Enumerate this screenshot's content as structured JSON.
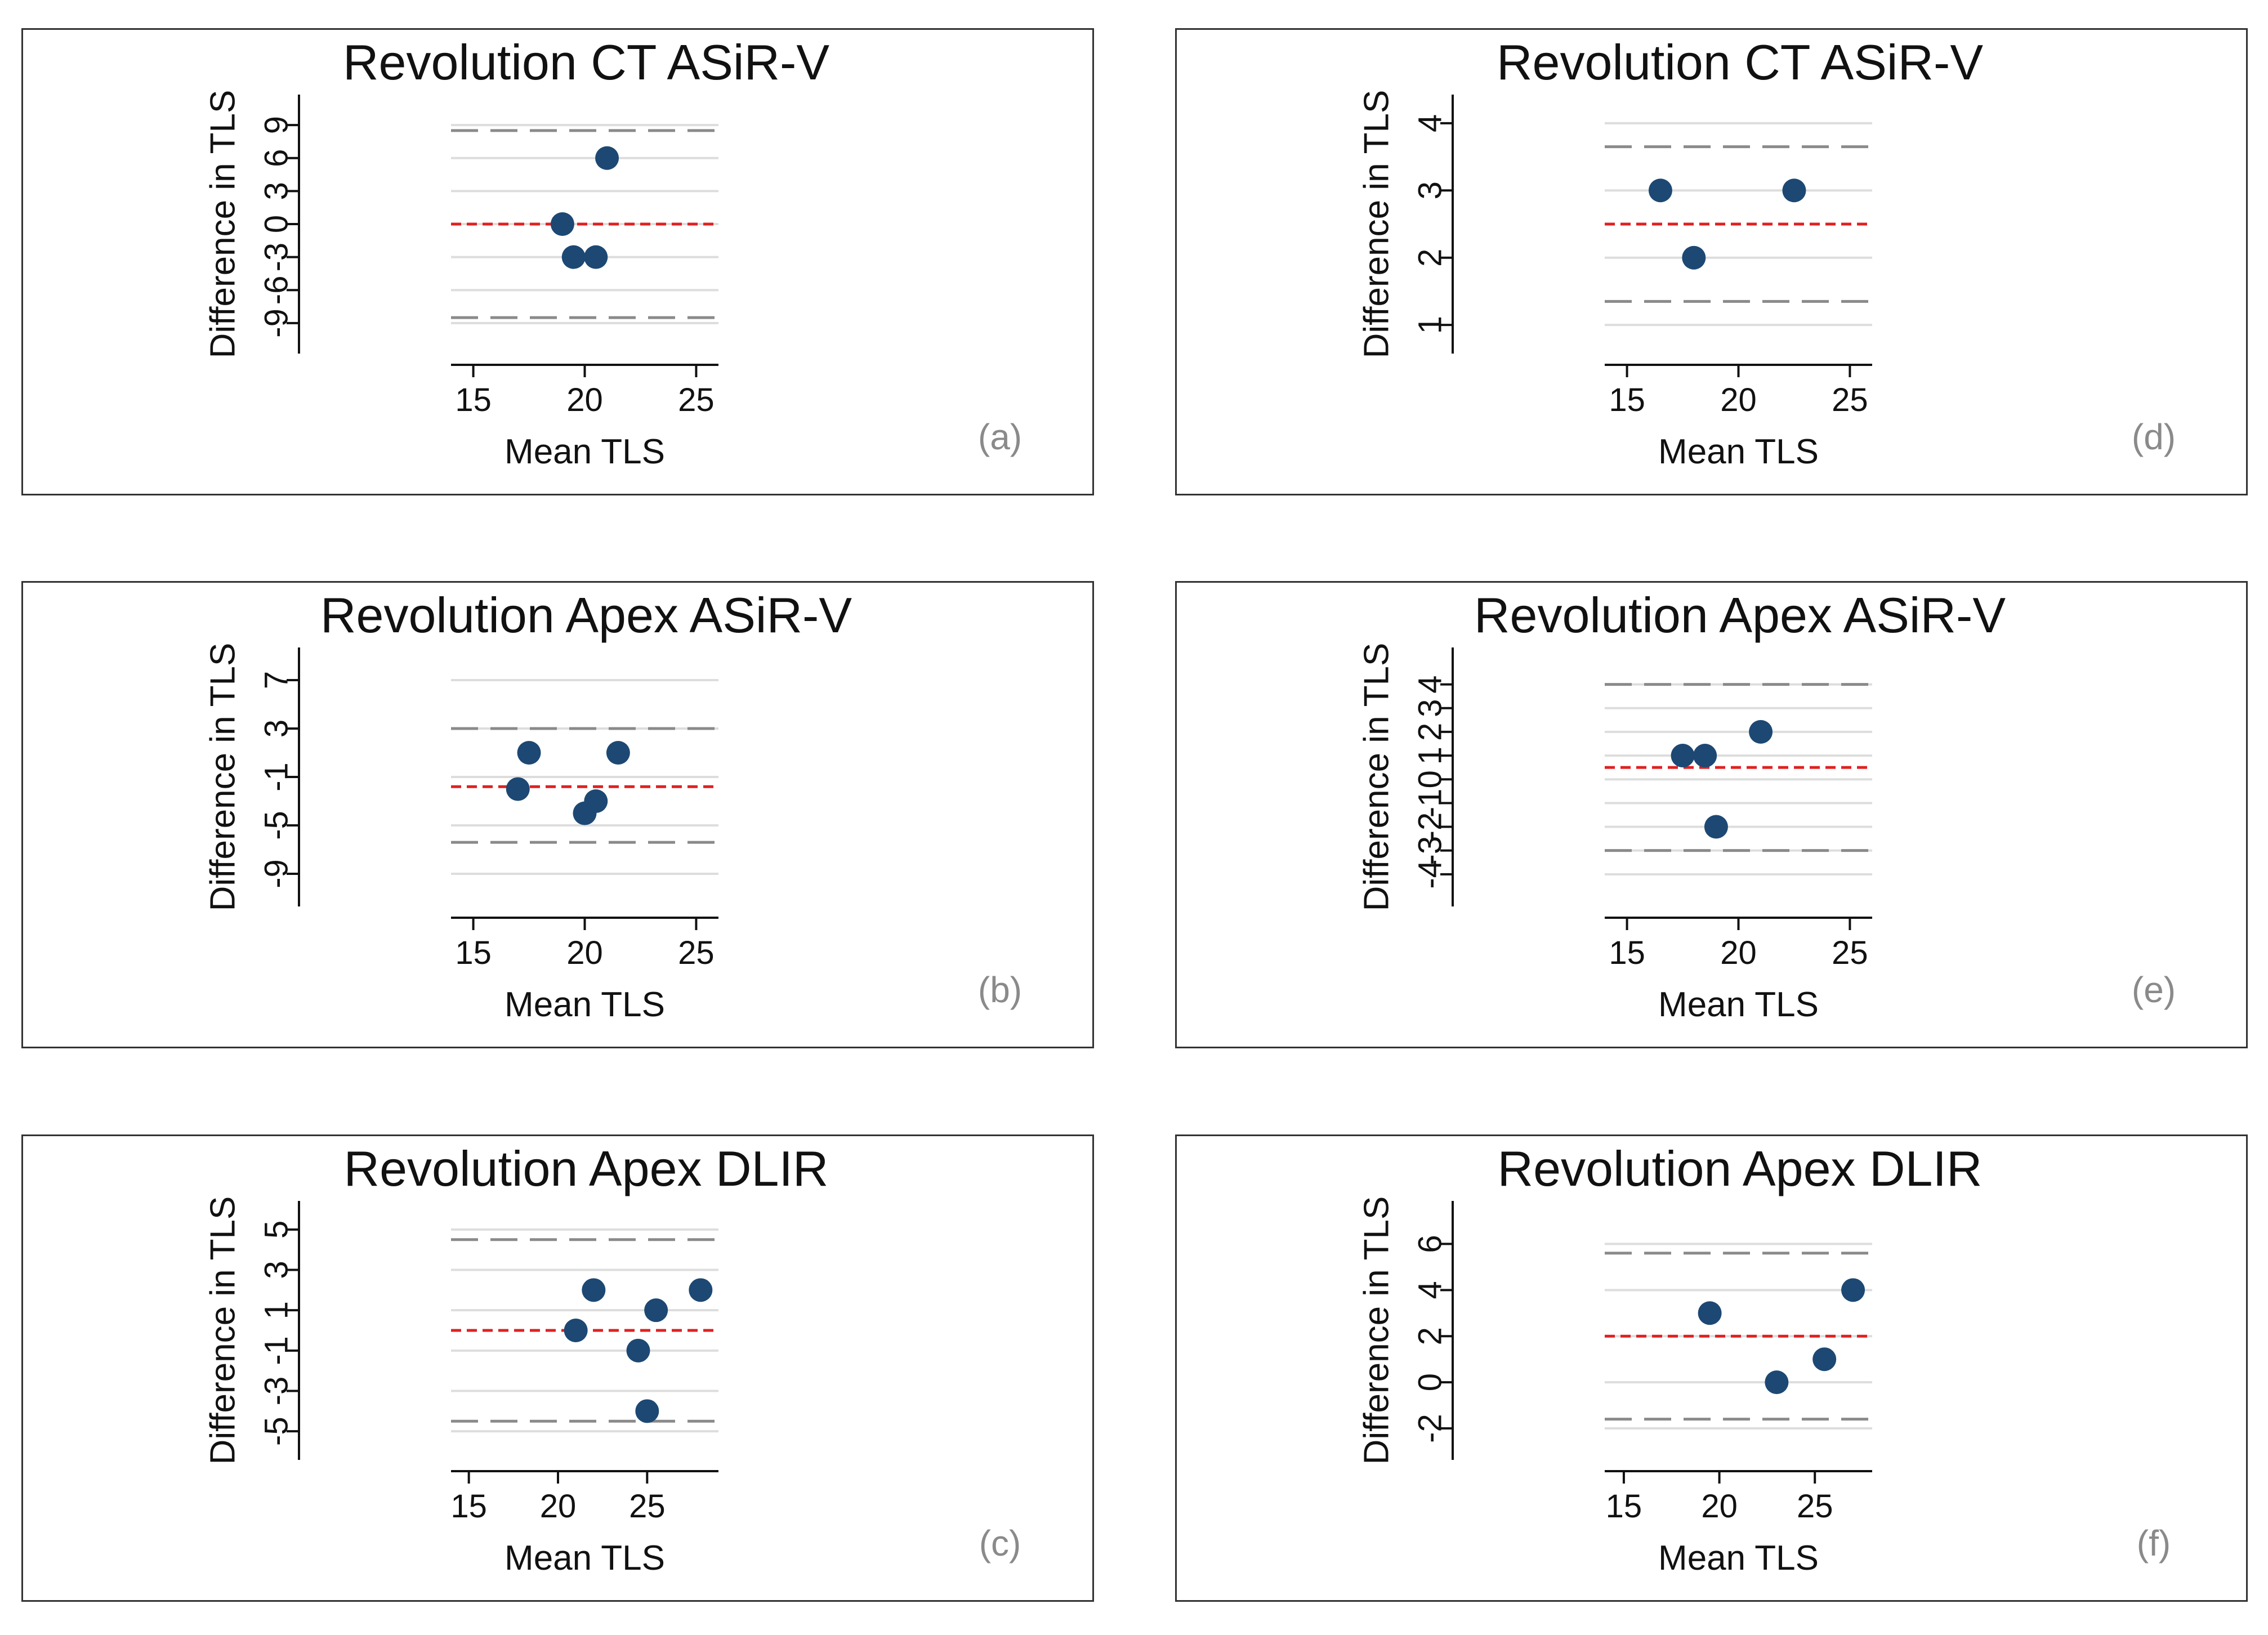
{
  "colors": {
    "point": "#1d4873",
    "mean_line": "#e02020",
    "loa_line": "#8a8a8a",
    "grid": "#dddddd"
  },
  "chart_data": [
    {
      "type": "scatter",
      "panel_label": "(a)",
      "title": "Revolution CT ASiR-V",
      "xlabel": "Mean TLS",
      "ylabel": "Difference in TLS",
      "xlim": [
        14,
        26
      ],
      "ylim": [
        -11,
        11
      ],
      "x_ticks": [
        "15",
        "20",
        "25"
      ],
      "y_ticks": [
        "-9",
        "-6",
        "-3",
        "0",
        "3",
        "6",
        "9"
      ],
      "y_ticks_raw": [
        -9,
        -6,
        -3,
        0,
        3,
        6,
        9
      ],
      "grid": true,
      "mean_difference": 0,
      "limits_of_agreement": [
        -8.5,
        8.5
      ],
      "points": [
        {
          "x": 21,
          "y": 6
        },
        {
          "x": 19,
          "y": 0
        },
        {
          "x": 19.5,
          "y": -3
        },
        {
          "x": 20.5,
          "y": -3
        }
      ]
    },
    {
      "type": "scatter",
      "panel_label": "(d)",
      "title": "Revolution CT ASiR-V",
      "xlabel": "Mean TLS",
      "ylabel": "Difference in TLS",
      "xlim": [
        14,
        26
      ],
      "ylim": [
        0.7,
        4.3
      ],
      "x_ticks": [
        "15",
        "20",
        "25"
      ],
      "y_ticks": [
        "1",
        "2",
        "3",
        "4"
      ],
      "y_ticks_raw": [
        1,
        2,
        3,
        4
      ],
      "grid": true,
      "mean_difference": 2.5,
      "limits_of_agreement": [
        1.35,
        3.65
      ],
      "points": [
        {
          "x": 16.5,
          "y": 3
        },
        {
          "x": 22.5,
          "y": 3
        },
        {
          "x": 18,
          "y": 2
        }
      ]
    },
    {
      "type": "scatter",
      "panel_label": "(b)",
      "title": "Revolution Apex ASiR-V",
      "xlabel": "Mean TLS",
      "ylabel": "Difference in TLS",
      "xlim": [
        14,
        26
      ],
      "ylim": [
        -11,
        9
      ],
      "x_ticks": [
        "15",
        "20",
        "25"
      ],
      "y_ticks": [
        "-9",
        "-5",
        "-1",
        "3",
        "7"
      ],
      "y_ticks_raw": [
        -9,
        -5,
        -1,
        3,
        7
      ],
      "grid": true,
      "mean_difference": -1.8,
      "limits_of_agreement": [
        -6.4,
        3
      ],
      "points": [
        {
          "x": 17.5,
          "y": 1
        },
        {
          "x": 21.5,
          "y": 1
        },
        {
          "x": 17,
          "y": -2
        },
        {
          "x": 20.5,
          "y": -3
        },
        {
          "x": 20,
          "y": -4
        }
      ]
    },
    {
      "type": "scatter",
      "panel_label": "(e)",
      "title": "Revolution Apex ASiR-V",
      "xlabel": "Mean TLS",
      "ylabel": "Difference in TLS",
      "xlim": [
        14,
        26
      ],
      "ylim": [
        -5,
        5.2
      ],
      "x_ticks": [
        "15",
        "20",
        "25"
      ],
      "y_ticks": [
        "-4",
        "-3",
        "-2",
        "-1",
        "0",
        "1",
        "2",
        "3",
        "4"
      ],
      "y_ticks_raw": [
        -4,
        -3,
        -2,
        -1,
        0,
        1,
        2,
        3,
        4
      ],
      "grid": true,
      "mean_difference": 0.5,
      "limits_of_agreement": [
        -3,
        4
      ],
      "points": [
        {
          "x": 21,
          "y": 2
        },
        {
          "x": 17.5,
          "y": 1
        },
        {
          "x": 18.5,
          "y": 1
        },
        {
          "x": 19,
          "y": -2
        }
      ]
    },
    {
      "type": "scatter",
      "panel_label": "(c)",
      "title": "Revolution Apex DLIR",
      "xlabel": "Mean TLS",
      "ylabel": "Difference in TLS",
      "xlim": [
        14,
        29
      ],
      "ylim": [
        -6,
        6
      ],
      "x_ticks": [
        "15",
        "20",
        "25"
      ],
      "y_ticks": [
        "-5",
        "-3",
        "-1",
        "1",
        "3",
        "5"
      ],
      "y_ticks_raw": [
        -5,
        -3,
        -1,
        1,
        3,
        5
      ],
      "grid": true,
      "mean_difference": 0,
      "limits_of_agreement": [
        -4.5,
        4.5
      ],
      "points": [
        {
          "x": 22,
          "y": 2
        },
        {
          "x": 28,
          "y": 2
        },
        {
          "x": 25.5,
          "y": 1
        },
        {
          "x": 21,
          "y": 0
        },
        {
          "x": 24.5,
          "y": -1
        },
        {
          "x": 25,
          "y": -4
        }
      ]
    },
    {
      "type": "scatter",
      "panel_label": "(f)",
      "title": "Revolution Apex DLIR",
      "xlabel": "Mean TLS",
      "ylabel": "Difference in TLS",
      "xlim": [
        14,
        28
      ],
      "ylim": [
        -3,
        7.5
      ],
      "x_ticks": [
        "15",
        "20",
        "25"
      ],
      "y_ticks": [
        "-2",
        "0",
        "2",
        "4",
        "6"
      ],
      "y_ticks_raw": [
        -2,
        0,
        2,
        4,
        6
      ],
      "grid": true,
      "mean_difference": 2,
      "limits_of_agreement": [
        -1.6,
        5.6
      ],
      "points": [
        {
          "x": 19.5,
          "y": 3
        },
        {
          "x": 27,
          "y": 4
        },
        {
          "x": 25.5,
          "y": 1
        },
        {
          "x": 23,
          "y": 0
        }
      ]
    }
  ]
}
